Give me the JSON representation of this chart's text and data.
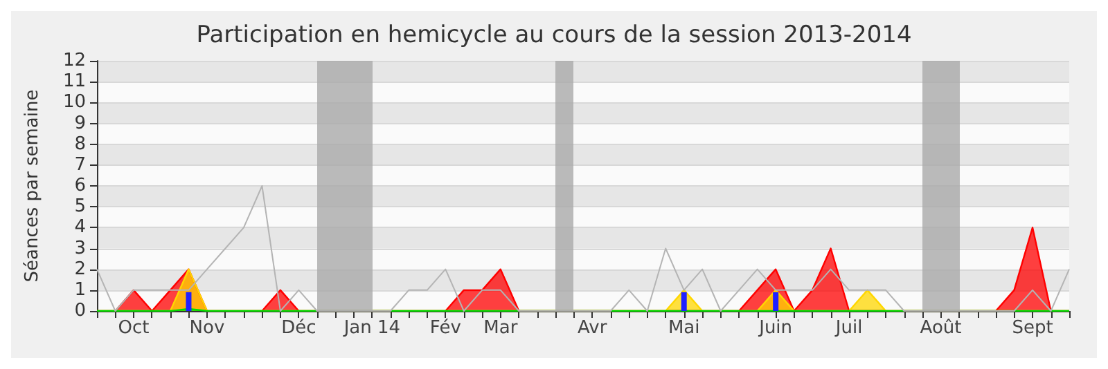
{
  "chart_data": {
    "type": "area",
    "title": "Participation en hemicycle au cours de la session 2013-2014",
    "ylabel": "Séances par semaine",
    "categories": [
      null,
      null,
      "Oct",
      null,
      null,
      null,
      "Nov",
      null,
      null,
      null,
      null,
      "Déc",
      null,
      null,
      null,
      "Jan 14",
      null,
      null,
      null,
      "Fév",
      null,
      null,
      "Mar",
      null,
      null,
      null,
      null,
      "Avr",
      null,
      null,
      null,
      null,
      "Mai",
      null,
      null,
      null,
      null,
      "Juin",
      null,
      null,
      null,
      "Juil",
      null,
      null,
      null,
      null,
      "Août",
      null,
      null,
      null,
      null,
      "Sept",
      null,
      null
    ],
    "ylim": [
      0,
      12
    ],
    "yticks": [
      0,
      1,
      2,
      3,
      4,
      5,
      6,
      7,
      8,
      9,
      10,
      11,
      12
    ],
    "grid": "y",
    "series": [
      {
        "type": "line",
        "color": "#b4b4b4",
        "values": [
          2,
          0,
          1,
          1,
          1,
          1,
          2,
          3,
          4,
          6,
          0,
          1,
          0,
          0,
          0,
          0,
          0,
          1,
          1,
          2,
          0,
          1,
          1,
          0,
          0,
          0,
          0,
          0,
          0,
          1,
          0,
          3,
          1,
          2,
          0,
          1,
          2,
          1,
          1,
          1,
          2,
          1,
          1,
          1,
          0,
          0,
          0,
          0,
          0,
          0,
          0,
          1,
          0,
          2
        ]
      },
      {
        "color": "#ff0000",
        "values": [
          0,
          0,
          1,
          0,
          1,
          2,
          0,
          0,
          0,
          0,
          1,
          0,
          0,
          0,
          0,
          0,
          0,
          0,
          0,
          0,
          1,
          1,
          2,
          0,
          0,
          0,
          0,
          0,
          0,
          0,
          0,
          0,
          0,
          0,
          0,
          0,
          1,
          2,
          0,
          1,
          3,
          0,
          0,
          0,
          0,
          0,
          0,
          0,
          0,
          0,
          1,
          4,
          0,
          0
        ]
      },
      {
        "color": "#ffd700",
        "values": [
          0,
          0,
          0,
          0,
          0,
          2,
          0,
          0,
          0,
          0,
          0,
          0,
          0,
          0,
          0,
          0,
          0,
          0,
          0,
          0,
          0,
          0,
          0,
          0,
          0,
          0,
          0,
          0,
          0,
          0,
          0,
          0,
          1,
          0,
          0,
          0,
          0,
          1,
          0,
          0,
          0,
          0,
          1,
          0,
          0,
          0,
          0,
          0,
          0,
          0,
          0,
          0,
          0,
          0
        ]
      },
      {
        "color": "#00dd00",
        "values": [
          0,
          0,
          0,
          0,
          0,
          0.1,
          0,
          0,
          0,
          0,
          0,
          0,
          0,
          0,
          0,
          0,
          0,
          0,
          0,
          0,
          0,
          0,
          0,
          0,
          0,
          0,
          0,
          0,
          0,
          0,
          0,
          0,
          0,
          0,
          0,
          0,
          0,
          0,
          0,
          0,
          0,
          0,
          0,
          0,
          0,
          0,
          0,
          0,
          0,
          0,
          0,
          0,
          0,
          0
        ]
      },
      {
        "type": "bar",
        "color": "#2020ff",
        "values": [
          null,
          null,
          null,
          null,
          null,
          0.9,
          null,
          null,
          null,
          null,
          null,
          null,
          null,
          null,
          null,
          null,
          null,
          null,
          null,
          null,
          null,
          null,
          null,
          null,
          null,
          null,
          null,
          null,
          null,
          null,
          null,
          null,
          0.9,
          null,
          null,
          null,
          null,
          0.9,
          null,
          null,
          null,
          null,
          null,
          null,
          null,
          null,
          null,
          null,
          null,
          null,
          null,
          null,
          null,
          null
        ]
      }
    ]
  }
}
